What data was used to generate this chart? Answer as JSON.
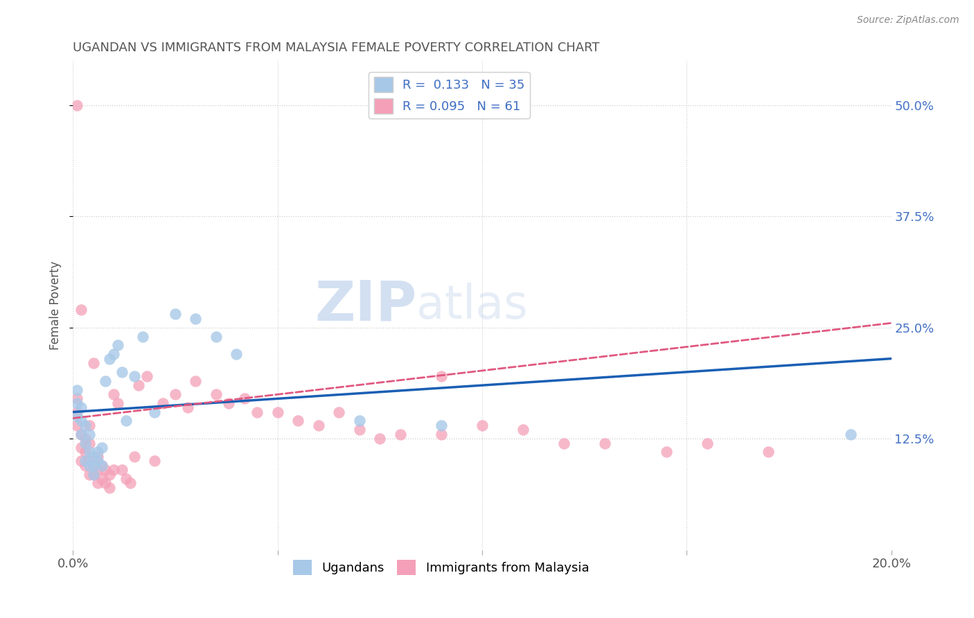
{
  "title": "UGANDAN VS IMMIGRANTS FROM MALAYSIA FEMALE POVERTY CORRELATION CHART",
  "source": "Source: ZipAtlas.com",
  "xlabel_ugandan": "Ugandans",
  "xlabel_malaysia": "Immigrants from Malaysia",
  "ylabel": "Female Poverty",
  "legend_r1": "R =  0.133",
  "legend_n1": "N = 35",
  "legend_r2": "R = 0.095",
  "legend_n2": "N = 61",
  "xlim": [
    0.0,
    0.2
  ],
  "ylim": [
    0.0,
    0.55
  ],
  "yticks": [
    0.125,
    0.25,
    0.375,
    0.5
  ],
  "ytick_labels": [
    "12.5%",
    "25.0%",
    "37.5%",
    "50.0%"
  ],
  "xticks": [
    0.0,
    0.05,
    0.1,
    0.15,
    0.2
  ],
  "xtick_labels": [
    "0.0%",
    "",
    "",
    "",
    "20.0%"
  ],
  "color_ugandan": "#a8c8e8",
  "color_malaysia": "#f4a0b8",
  "color_ugandan_line": "#1a5fb4",
  "color_malaysia_line": "#e05880",
  "background_color": "#ffffff",
  "watermark_zip": "ZIP",
  "watermark_atlas": "atlas",
  "ugandan_trendline": [
    [
      0.0,
      0.155
    ],
    [
      0.2,
      0.215
    ]
  ],
  "malaysia_trendline": [
    [
      0.0,
      0.148
    ],
    [
      0.2,
      0.255
    ]
  ],
  "ugandan_x": [
    0.001,
    0.001,
    0.001,
    0.002,
    0.002,
    0.002,
    0.003,
    0.003,
    0.003,
    0.004,
    0.004,
    0.004,
    0.005,
    0.005,
    0.005,
    0.006,
    0.006,
    0.007,
    0.007,
    0.008,
    0.009,
    0.01,
    0.011,
    0.012,
    0.013,
    0.015,
    0.017,
    0.02,
    0.025,
    0.03,
    0.035,
    0.04,
    0.07,
    0.09,
    0.19
  ],
  "ugandan_y": [
    0.15,
    0.165,
    0.18,
    0.13,
    0.145,
    0.16,
    0.1,
    0.12,
    0.14,
    0.095,
    0.11,
    0.13,
    0.085,
    0.095,
    0.105,
    0.1,
    0.11,
    0.095,
    0.115,
    0.19,
    0.215,
    0.22,
    0.23,
    0.2,
    0.145,
    0.195,
    0.24,
    0.155,
    0.265,
    0.26,
    0.24,
    0.22,
    0.145,
    0.14,
    0.13
  ],
  "malaysia_x": [
    0.001,
    0.001,
    0.001,
    0.001,
    0.002,
    0.002,
    0.002,
    0.002,
    0.003,
    0.003,
    0.003,
    0.004,
    0.004,
    0.004,
    0.004,
    0.005,
    0.005,
    0.005,
    0.006,
    0.006,
    0.006,
    0.007,
    0.007,
    0.008,
    0.008,
    0.009,
    0.009,
    0.01,
    0.01,
    0.011,
    0.012,
    0.013,
    0.014,
    0.015,
    0.016,
    0.018,
    0.02,
    0.022,
    0.025,
    0.028,
    0.03,
    0.035,
    0.038,
    0.042,
    0.045,
    0.05,
    0.055,
    0.06,
    0.065,
    0.07,
    0.075,
    0.08,
    0.09,
    0.1,
    0.11,
    0.12,
    0.13,
    0.145,
    0.155,
    0.17,
    0.09
  ],
  "malaysia_y": [
    0.14,
    0.155,
    0.17,
    0.5,
    0.1,
    0.115,
    0.13,
    0.27,
    0.095,
    0.11,
    0.125,
    0.085,
    0.1,
    0.12,
    0.14,
    0.085,
    0.095,
    0.21,
    0.075,
    0.09,
    0.105,
    0.08,
    0.095,
    0.075,
    0.09,
    0.07,
    0.085,
    0.09,
    0.175,
    0.165,
    0.09,
    0.08,
    0.075,
    0.105,
    0.185,
    0.195,
    0.1,
    0.165,
    0.175,
    0.16,
    0.19,
    0.175,
    0.165,
    0.17,
    0.155,
    0.155,
    0.145,
    0.14,
    0.155,
    0.135,
    0.125,
    0.13,
    0.13,
    0.14,
    0.135,
    0.12,
    0.12,
    0.11,
    0.12,
    0.11,
    0.195
  ]
}
